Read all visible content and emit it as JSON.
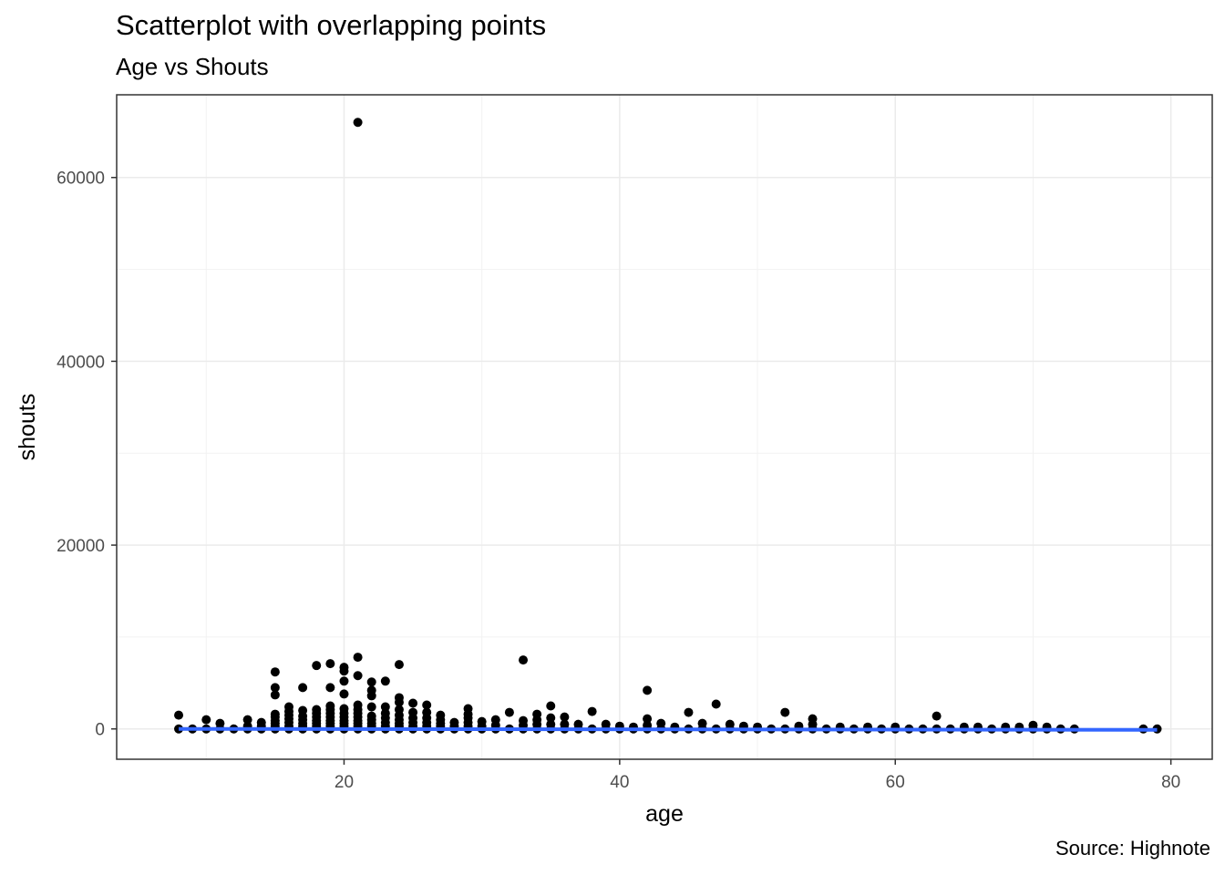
{
  "chart_data": {
    "type": "scatter",
    "title": "Scatterplot with overlapping points",
    "subtitle": "Age vs Shouts",
    "caption": "Source: Highnote",
    "xlabel": "age",
    "ylabel": "shouts",
    "xlim": [
      3.5,
      83
    ],
    "ylim": [
      -3300,
      69000
    ],
    "xticks": [
      20,
      40,
      60,
      80
    ],
    "yticks": [
      0,
      20000,
      40000,
      60000
    ],
    "xtick_labels": [
      "20",
      "40",
      "60",
      "80"
    ],
    "ytick_labels": [
      "0",
      "20000",
      "40000",
      "60000"
    ],
    "grid": true,
    "point_color": "#000000",
    "line_color": "#3366FF",
    "trend_line": {
      "x": [
        8,
        79
      ],
      "y": [
        0,
        -100
      ]
    },
    "points": [
      [
        8,
        0
      ],
      [
        8,
        1500
      ],
      [
        9,
        0
      ],
      [
        10,
        0
      ],
      [
        10,
        1000
      ],
      [
        11,
        0
      ],
      [
        11,
        600
      ],
      [
        12,
        0
      ],
      [
        13,
        0
      ],
      [
        13,
        300
      ],
      [
        13,
        1000
      ],
      [
        14,
        0
      ],
      [
        14,
        300
      ],
      [
        14,
        700
      ],
      [
        15,
        0
      ],
      [
        15,
        300
      ],
      [
        15,
        600
      ],
      [
        15,
        900
      ],
      [
        15,
        1300
      ],
      [
        15,
        1600
      ],
      [
        15,
        3700
      ],
      [
        15,
        4500
      ],
      [
        15,
        6200
      ],
      [
        16,
        0
      ],
      [
        16,
        300
      ],
      [
        16,
        700
      ],
      [
        16,
        1100
      ],
      [
        16,
        1500
      ],
      [
        16,
        1900
      ],
      [
        16,
        2400
      ],
      [
        17,
        0
      ],
      [
        17,
        300
      ],
      [
        17,
        600
      ],
      [
        17,
        1000
      ],
      [
        17,
        1400
      ],
      [
        17,
        2000
      ],
      [
        17,
        4500
      ],
      [
        18,
        0
      ],
      [
        18,
        300
      ],
      [
        18,
        600
      ],
      [
        18,
        900
      ],
      [
        18,
        1300
      ],
      [
        18,
        1700
      ],
      [
        18,
        2100
      ],
      [
        18,
        6900
      ],
      [
        19,
        0
      ],
      [
        19,
        300
      ],
      [
        19,
        600
      ],
      [
        19,
        900
      ],
      [
        19,
        1300
      ],
      [
        19,
        1700
      ],
      [
        19,
        2100
      ],
      [
        19,
        2500
      ],
      [
        19,
        4500
      ],
      [
        19,
        7100
      ],
      [
        20,
        0
      ],
      [
        20,
        300
      ],
      [
        20,
        600
      ],
      [
        20,
        900
      ],
      [
        20,
        1300
      ],
      [
        20,
        1700
      ],
      [
        20,
        2200
      ],
      [
        20,
        3800
      ],
      [
        20,
        5200
      ],
      [
        20,
        6300
      ],
      [
        20,
        6700
      ],
      [
        21,
        0
      ],
      [
        21,
        300
      ],
      [
        21,
        600
      ],
      [
        21,
        900
      ],
      [
        21,
        1300
      ],
      [
        21,
        1700
      ],
      [
        21,
        2100
      ],
      [
        21,
        2600
      ],
      [
        21,
        5800
      ],
      [
        21,
        7800
      ],
      [
        21,
        66000
      ],
      [
        22,
        0
      ],
      [
        22,
        300
      ],
      [
        22,
        600
      ],
      [
        22,
        1000
      ],
      [
        22,
        1400
      ],
      [
        22,
        2400
      ],
      [
        22,
        3600
      ],
      [
        22,
        4200
      ],
      [
        22,
        5100
      ],
      [
        23,
        0
      ],
      [
        23,
        300
      ],
      [
        23,
        700
      ],
      [
        23,
        1200
      ],
      [
        23,
        1700
      ],
      [
        23,
        2400
      ],
      [
        23,
        5200
      ],
      [
        24,
        0
      ],
      [
        24,
        300
      ],
      [
        24,
        600
      ],
      [
        24,
        1000
      ],
      [
        24,
        1500
      ],
      [
        24,
        2100
      ],
      [
        24,
        2900
      ],
      [
        24,
        3400
      ],
      [
        24,
        7000
      ],
      [
        25,
        0
      ],
      [
        25,
        300
      ],
      [
        25,
        700
      ],
      [
        25,
        1200
      ],
      [
        25,
        1800
      ],
      [
        25,
        2800
      ],
      [
        26,
        0
      ],
      [
        26,
        300
      ],
      [
        26,
        700
      ],
      [
        26,
        1200
      ],
      [
        26,
        1800
      ],
      [
        26,
        2600
      ],
      [
        27,
        0
      ],
      [
        27,
        300
      ],
      [
        27,
        600
      ],
      [
        27,
        1000
      ],
      [
        27,
        1500
      ],
      [
        28,
        0
      ],
      [
        28,
        300
      ],
      [
        28,
        700
      ],
      [
        29,
        0
      ],
      [
        29,
        300
      ],
      [
        29,
        700
      ],
      [
        29,
        1200
      ],
      [
        29,
        1600
      ],
      [
        29,
        2200
      ],
      [
        30,
        0
      ],
      [
        30,
        300
      ],
      [
        30,
        800
      ],
      [
        31,
        0
      ],
      [
        31,
        400
      ],
      [
        31,
        1000
      ],
      [
        32,
        0
      ],
      [
        32,
        1800
      ],
      [
        33,
        0
      ],
      [
        33,
        400
      ],
      [
        33,
        900
      ],
      [
        33,
        7500
      ],
      [
        34,
        0
      ],
      [
        34,
        500
      ],
      [
        34,
        1000
      ],
      [
        34,
        1600
      ],
      [
        35,
        0
      ],
      [
        35,
        500
      ],
      [
        35,
        1200
      ],
      [
        35,
        2500
      ],
      [
        36,
        0
      ],
      [
        36,
        500
      ],
      [
        36,
        1300
      ],
      [
        37,
        0
      ],
      [
        37,
        500
      ],
      [
        38,
        0
      ],
      [
        38,
        1900
      ],
      [
        39,
        0
      ],
      [
        39,
        500
      ],
      [
        40,
        0
      ],
      [
        40,
        300
      ],
      [
        41,
        0
      ],
      [
        41,
        200
      ],
      [
        42,
        0
      ],
      [
        42,
        400
      ],
      [
        42,
        1100
      ],
      [
        42,
        4200
      ],
      [
        43,
        0
      ],
      [
        43,
        600
      ],
      [
        44,
        0
      ],
      [
        44,
        200
      ],
      [
        45,
        0
      ],
      [
        45,
        1800
      ],
      [
        46,
        0
      ],
      [
        46,
        600
      ],
      [
        47,
        0
      ],
      [
        47,
        2700
      ],
      [
        48,
        0
      ],
      [
        48,
        500
      ],
      [
        49,
        0
      ],
      [
        49,
        300
      ],
      [
        50,
        0
      ],
      [
        50,
        200
      ],
      [
        51,
        0
      ],
      [
        52,
        0
      ],
      [
        52,
        1800
      ],
      [
        53,
        0
      ],
      [
        53,
        300
      ],
      [
        54,
        0
      ],
      [
        54,
        500
      ],
      [
        54,
        1100
      ],
      [
        55,
        0
      ],
      [
        56,
        0
      ],
      [
        56,
        200
      ],
      [
        57,
        0
      ],
      [
        58,
        0
      ],
      [
        58,
        200
      ],
      [
        59,
        0
      ],
      [
        60,
        0
      ],
      [
        60,
        200
      ],
      [
        61,
        0
      ],
      [
        62,
        0
      ],
      [
        63,
        0
      ],
      [
        63,
        1400
      ],
      [
        64,
        0
      ],
      [
        65,
        0
      ],
      [
        65,
        200
      ],
      [
        66,
        0
      ],
      [
        66,
        200
      ],
      [
        67,
        0
      ],
      [
        68,
        0
      ],
      [
        68,
        200
      ],
      [
        69,
        0
      ],
      [
        69,
        200
      ],
      [
        70,
        0
      ],
      [
        70,
        400
      ],
      [
        71,
        0
      ],
      [
        71,
        200
      ],
      [
        72,
        0
      ],
      [
        73,
        0
      ],
      [
        78,
        0
      ],
      [
        79,
        0
      ]
    ]
  }
}
